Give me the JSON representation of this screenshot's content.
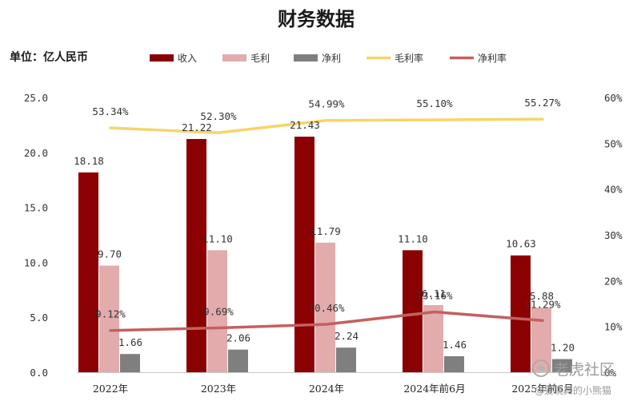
{
  "title": "财务数据",
  "unit_label": "单位：亿人民币",
  "watermark": {
    "brand": "老虎社区",
    "handle": "@爱跳舞的小熊猫"
  },
  "colors": {
    "revenue": "#8b0000",
    "gross_profit": "#e2acac",
    "net_profit": "#7f7f7f",
    "gross_margin": "#f5d56a",
    "net_margin": "#c46060"
  },
  "chart_data": {
    "type": "bar",
    "categories": [
      "2022年",
      "2023年",
      "2024年",
      "2024年前6月",
      "2025年前6月"
    ],
    "series": [
      {
        "name": "收入",
        "kind": "bar",
        "axis": "left",
        "values": [
          18.18,
          21.22,
          21.43,
          11.1,
          10.63
        ],
        "labels": [
          "18.18",
          "21.22",
          "21.43",
          "11.10",
          "10.63"
        ]
      },
      {
        "name": "毛利",
        "kind": "bar",
        "axis": "left",
        "values": [
          9.7,
          11.1,
          11.79,
          6.11,
          5.88
        ],
        "labels": [
          "9.70",
          "11.10",
          "11.79",
          "6.11",
          "5.88"
        ]
      },
      {
        "name": "净利",
        "kind": "bar",
        "axis": "left",
        "values": [
          1.66,
          2.06,
          2.24,
          1.46,
          1.2
        ],
        "labels": [
          "1.66",
          "2.06",
          "2.24",
          "1.46",
          "1.20"
        ]
      },
      {
        "name": "毛利率",
        "kind": "line",
        "axis": "right",
        "values": [
          53.34,
          52.3,
          54.99,
          55.1,
          55.27
        ],
        "labels": [
          "53.34%",
          "52.30%",
          "54.99%",
          "55.10%",
          "55.27%"
        ]
      },
      {
        "name": "净利率",
        "kind": "line",
        "axis": "right",
        "values": [
          9.12,
          9.69,
          10.46,
          13.16,
          11.29
        ],
        "labels": [
          "9.12%",
          "9.69%",
          "10.46%",
          "13.16%",
          "11.29%"
        ]
      }
    ],
    "y_left": {
      "ylim": [
        0,
        25
      ],
      "ticks": [
        "0.0",
        "5.0",
        "10.0",
        "15.0",
        "20.0",
        "25.0"
      ]
    },
    "y_right": {
      "ylim": [
        0,
        60
      ],
      "ticks": [
        "0%",
        "10%",
        "20%",
        "30%",
        "40%",
        "50%",
        "60%"
      ]
    },
    "legend_position": "top",
    "grid": false
  }
}
